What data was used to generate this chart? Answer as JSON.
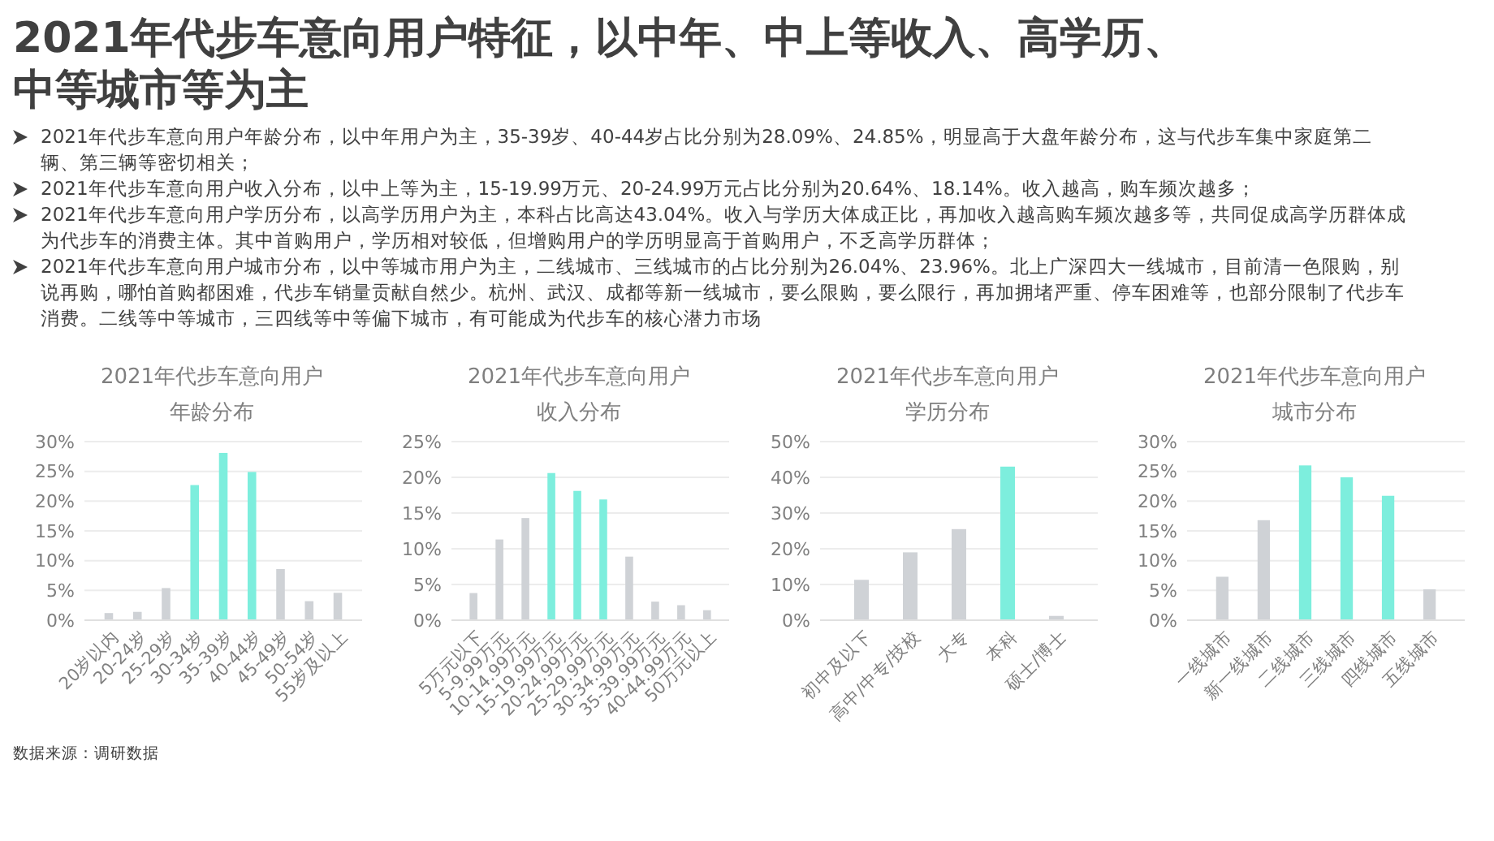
{
  "chart_data": [
    {
      "type": "other",
      "title": "2021年代步车意向用户特征，以中年、中上等收入、高学历、中等城市等为主",
      "annotations": [
        "2021年代步车意向用户年龄分布，以中年用户为主，35-39岁、40-44岁占比分别为28.09%、24.85%，明显高于大盘年龄分布，这与代步车集中家庭第二辆、第三辆等密切相关；",
        "2021年代步车意向用户收入分布，以中上等为主，15-19.99万元、20-24.99万元占比分别为20.64%、18.14%。收入越高，购车频次越多；",
        "2021年代步车意向用户学历分布，以高学历用户为主，本科占比高达43.04%。收入与学历大体成正比，再加收入越高购车频次越多等，共同促成高学历群体成为代步车的消费主体。其中首购用户，学历相对较低，但增购用户的学历明显高于首购用户，不乏高学历群体；",
        "2021年代步车意向用户城市分布，以中等城市用户为主，二线城市、三线城市的占比分别为26.04%、23.96%。北上广深四大一线城市，目前清一色限购，别说再购，哪怕首购都困难，代步车销量贡献自然少。杭州、武汉、成都等新一线城市，要么限购，要么限行，再加拥堵严重、停车困难等，也部分限制了代步车消费。二线等中等城市，三四线等中等偏下城市，有可能成为代步车的核心潜力市场"
      ]
    },
    {
      "type": "bar",
      "title": "2021年代步车意向用户",
      "subtitle": "年龄分布",
      "categories": [
        "20岁以内",
        "20-24岁",
        "25-29岁",
        "30-34岁",
        "35-39岁",
        "40-44岁",
        "45-49岁",
        "50-54岁",
        "55岁及以上"
      ],
      "values": [
        1.2,
        1.4,
        5.4,
        22.7,
        28.1,
        24.9,
        8.6,
        3.2,
        4.6
      ],
      "colors": [
        "#cfd2d6",
        "#cfd2d6",
        "#cfd2d6",
        "#7deedd",
        "#7deedd",
        "#7deedd",
        "#cfd2d6",
        "#cfd2d6",
        "#cfd2d6"
      ],
      "ylim": [
        0,
        30
      ],
      "yticks": [
        {
          "value": 0,
          "label": "0%"
        },
        {
          "value": 5,
          "label": "5%"
        },
        {
          "value": 10,
          "label": "10%"
        },
        {
          "value": 15,
          "label": "15%"
        },
        {
          "value": 20,
          "label": "20%"
        },
        {
          "value": 25,
          "label": "25%"
        },
        {
          "value": 30,
          "label": "30%"
        }
      ],
      "grid": "y",
      "annotations": [
        "数据来源：调研数据"
      ]
    },
    {
      "type": "bar",
      "title": "2021年代步车意向用户",
      "subtitle": "收入分布",
      "categories": [
        "5万元以下",
        "5-9.99万元",
        "10-14.99万元",
        "15-19.99万元",
        "20-24.99万元",
        "25-29.99万元",
        "30-34.99万元",
        "35-39.99万元",
        "40-44.99万元",
        "50万元以上"
      ],
      "values": [
        3.8,
        11.3,
        14.3,
        20.6,
        18.1,
        16.9,
        8.9,
        2.6,
        2.1,
        1.4
      ],
      "colors": [
        "#cfd2d6",
        "#cfd2d6",
        "#cfd2d6",
        "#7deedd",
        "#7deedd",
        "#7deedd",
        "#cfd2d6",
        "#cfd2d6",
        "#cfd2d6",
        "#cfd2d6"
      ],
      "ylim": [
        0,
        25
      ],
      "yticks": [
        {
          "value": 0,
          "label": "0%"
        },
        {
          "value": 5,
          "label": "5%"
        },
        {
          "value": 10,
          "label": "10%"
        },
        {
          "value": 15,
          "label": "15%"
        },
        {
          "value": 20,
          "label": "20%"
        },
        {
          "value": 25,
          "label": "25%"
        }
      ],
      "grid": "y"
    },
    {
      "type": "bar",
      "title": "2021年代步车意向用户",
      "subtitle": "学历分布",
      "categories": [
        "初中及以下",
        "高中/中专/技校",
        "大专",
        "本科",
        "硕士/博士"
      ],
      "values": [
        11.3,
        19,
        25.5,
        43,
        1.2
      ],
      "colors": [
        "#cfd2d6",
        "#cfd2d6",
        "#cfd2d6",
        "#7deedd",
        "#cfd2d6"
      ],
      "ylim": [
        0,
        50
      ],
      "yticks": [
        {
          "value": 0,
          "label": "0%"
        },
        {
          "value": 10,
          "label": "10%"
        },
        {
          "value": 20,
          "label": "20%"
        },
        {
          "value": 30,
          "label": "30%"
        },
        {
          "value": 40,
          "label": "40%"
        },
        {
          "value": 50,
          "label": "50%"
        }
      ],
      "grid": "y"
    },
    {
      "type": "bar",
      "title": "2021年代步车意向用户",
      "subtitle": "城市分布",
      "categories": [
        "一线城市",
        "新一线城市",
        "二线城市",
        "三线城市",
        "四线城市",
        "五线城市"
      ],
      "values": [
        7.3,
        16.8,
        26,
        24,
        20.9,
        5.2
      ],
      "colors": [
        "#cfd2d6",
        "#cfd2d6",
        "#7deedd",
        "#7deedd",
        "#7deedd",
        "#cfd2d6"
      ],
      "ylim": [
        0,
        30
      ],
      "yticks": [
        {
          "value": 0,
          "label": "0%"
        },
        {
          "value": 5,
          "label": "5%"
        },
        {
          "value": 10,
          "label": "10%"
        },
        {
          "value": 15,
          "label": "15%"
        },
        {
          "value": 20,
          "label": "20%"
        },
        {
          "value": 25,
          "label": "25%"
        },
        {
          "value": 30,
          "label": "30%"
        }
      ],
      "grid": "y"
    }
  ]
}
